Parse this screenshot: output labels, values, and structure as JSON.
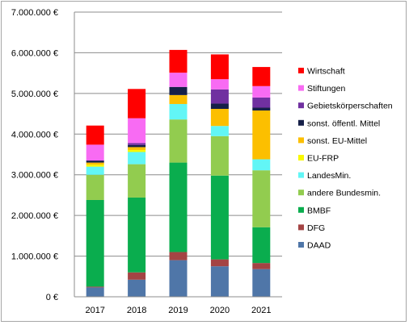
{
  "chart_data": {
    "type": "bar",
    "stacked": true,
    "categories": [
      "2017",
      "2018",
      "2019",
      "2020",
      "2021"
    ],
    "ylim": [
      0,
      7000000
    ],
    "yticks": [
      0,
      1000000,
      2000000,
      3000000,
      4000000,
      5000000,
      6000000,
      7000000
    ],
    "ytick_labels": [
      "0 €",
      "1.000.000 €",
      "2.000.000 €",
      "3.000.000 €",
      "4.000.000 €",
      "5.000.000 €",
      "6.000.000 €",
      "7.000.000 €"
    ],
    "grid": true,
    "legend_position": "right",
    "series": [
      {
        "name": "DAAD",
        "color": "#4f76a8",
        "values": [
          230000,
          420000,
          900000,
          750000,
          680000
        ]
      },
      {
        "name": "DFG",
        "color": "#a44444",
        "values": [
          20000,
          180000,
          200000,
          170000,
          150000
        ]
      },
      {
        "name": "BMBF",
        "color": "#0aad4e",
        "values": [
          2130000,
          1840000,
          2200000,
          2060000,
          880000
        ]
      },
      {
        "name": "andere Bundesmin.",
        "color": "#92cc4f",
        "values": [
          620000,
          820000,
          1060000,
          970000,
          1400000
        ]
      },
      {
        "name": "LandesMin.",
        "color": "#62f6f6",
        "values": [
          200000,
          300000,
          380000,
          250000,
          270000
        ]
      },
      {
        "name": "EU-FRP",
        "color": "#f8f800",
        "values": [
          50000,
          50000,
          0,
          0,
          0
        ]
      },
      {
        "name": "sonst. EU-Mittel",
        "color": "#fcbf00",
        "values": [
          50000,
          70000,
          220000,
          420000,
          1200000
        ]
      },
      {
        "name": "sonst. öffentl. Mittel",
        "color": "#162048",
        "values": [
          50000,
          50000,
          200000,
          130000,
          70000
        ]
      },
      {
        "name": "Gebietskörperschaften",
        "color": "#7030a0",
        "values": [
          0,
          50000,
          0,
          350000,
          250000
        ]
      },
      {
        "name": "Stiftungen",
        "color": "#f86bf3",
        "values": [
          390000,
          610000,
          350000,
          250000,
          280000
        ]
      },
      {
        "name": "Wirtschaft",
        "color": "#ff0000",
        "values": [
          470000,
          720000,
          560000,
          610000,
          470000
        ]
      }
    ]
  }
}
